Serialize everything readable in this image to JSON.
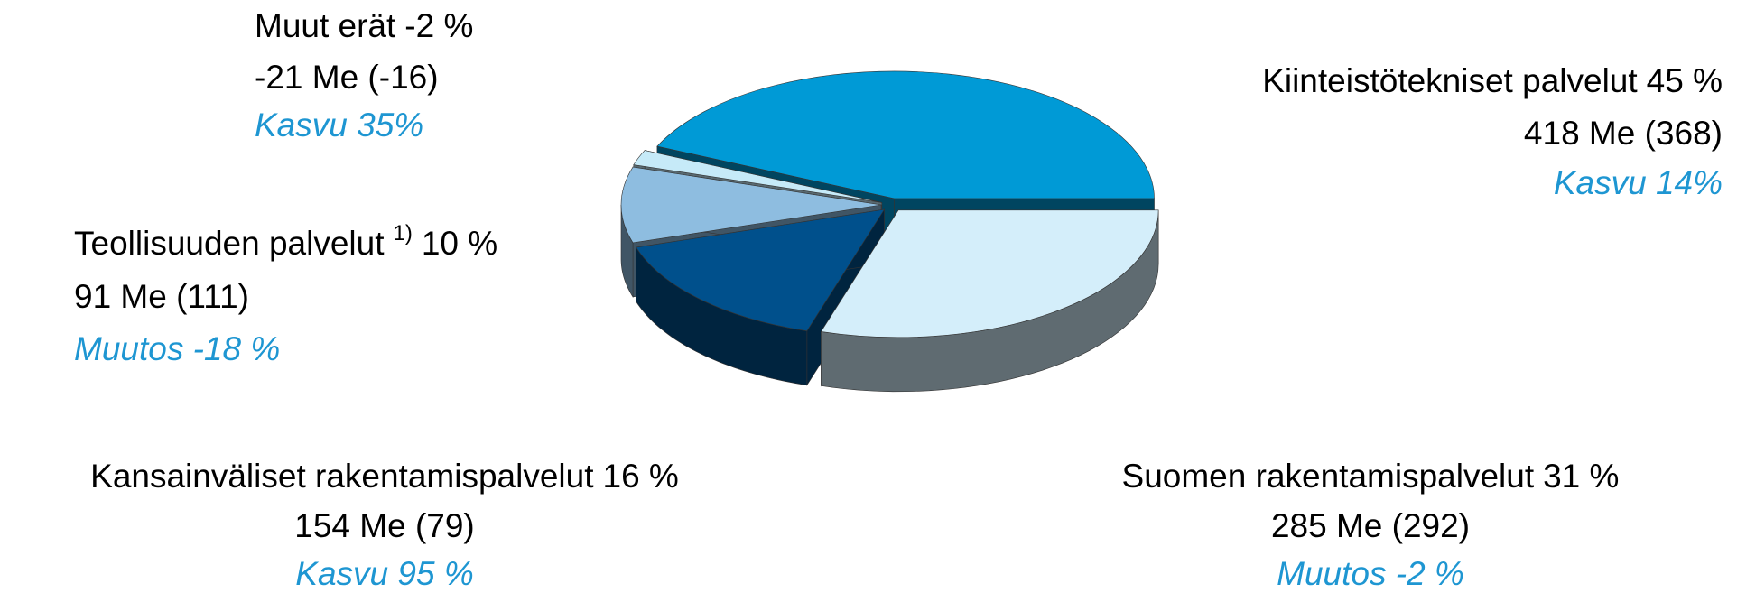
{
  "chart_data": {
    "type": "pie",
    "categories": [
      "Kiinteistötekniset palvelut",
      "Suomen rakentamispalvelut",
      "Kansainväliset rakentamispalvelut",
      "Teollisuuden palvelut",
      "Muut erät"
    ],
    "values": [
      45,
      31,
      16,
      10,
      -2
    ],
    "value_labels": [
      "45 %",
      "31 %",
      "16 %",
      "10 %",
      "-2 %"
    ],
    "category_notes": {
      "3": "1)"
    },
    "amounts": [
      "418 Me (368)",
      "285 Me (292)",
      "154 Me (79)",
      "91 Me (111)",
      "-21 Me (-16)"
    ],
    "changes": [
      "Kasvu 14%",
      "Muutos -2 %",
      "Kasvu 95 %",
      "Muutos -18 %",
      "Kasvu 35%"
    ],
    "colors": [
      "#009ad6",
      "#d4eefa",
      "#00508c",
      "#8ebde0",
      "#c6eaf8"
    ],
    "change_color": "#1e96d2"
  }
}
